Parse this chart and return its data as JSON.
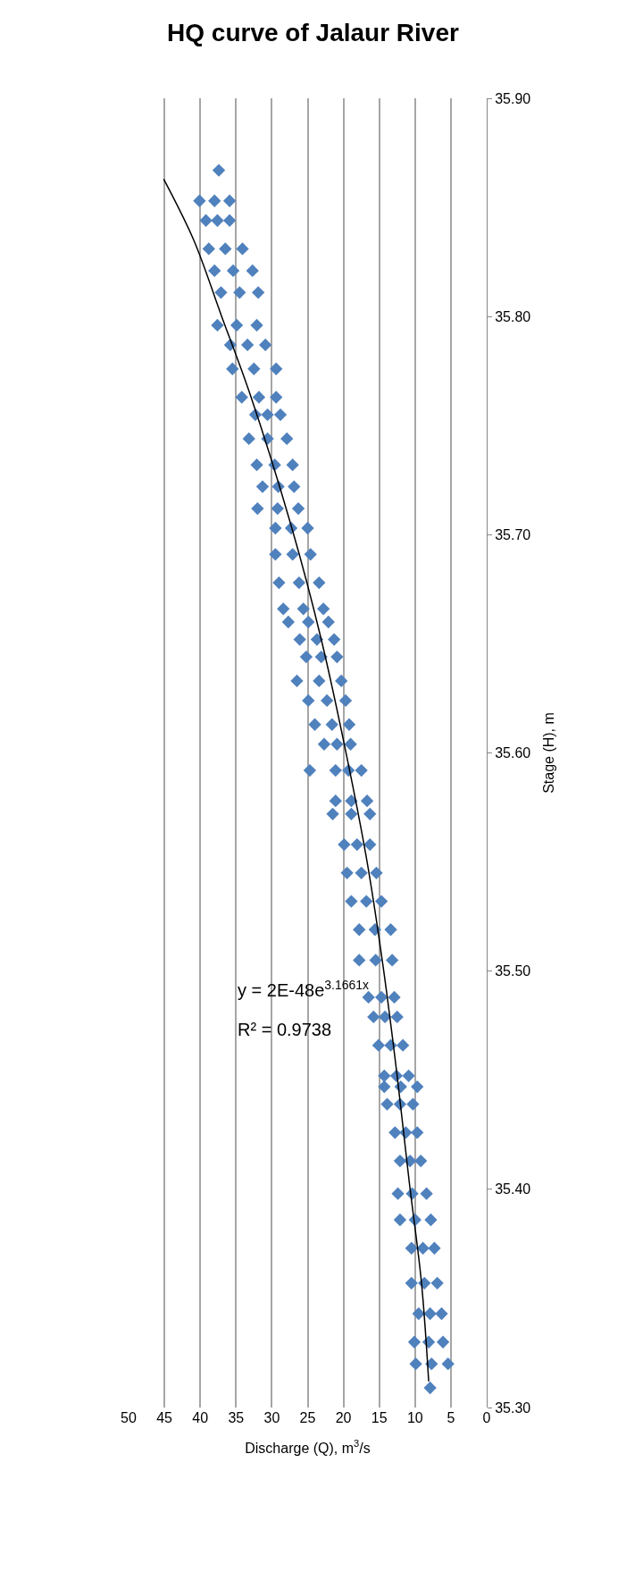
{
  "chart_data": {
    "type": "scatter",
    "title": "HQ curve of Jalaur River",
    "xlabel": "Discharge (Q), m$^{3}$/s",
    "ylabel": "Stage (H), m",
    "annotations": [
      "y = 2E-48e$^{3.1661x}$",
      "R² = 0.9738"
    ],
    "series": [
      {
        "color": "#4f81bd",
        "marker": "diamond",
        "values": [
          35.867,
          35.853,
          35.853,
          35.853,
          35.844,
          35.844,
          35.844,
          35.831,
          35.831,
          35.831,
          35.821,
          35.821,
          35.821,
          35.811,
          35.811,
          35.811,
          35.796,
          35.796,
          35.796,
          35.787,
          35.787,
          35.787,
          35.776,
          35.776,
          35.776,
          35.763,
          35.763,
          35.763,
          35.755,
          35.755,
          35.755,
          35.744,
          35.744,
          35.744,
          35.732,
          35.732,
          35.732,
          35.722,
          35.722,
          35.722,
          35.712,
          35.712,
          35.712,
          35.703,
          35.703,
          35.703,
          35.691,
          35.691,
          35.691,
          35.678,
          35.678,
          35.678,
          35.666,
          35.666,
          35.666,
          35.66,
          35.66,
          35.66,
          35.652,
          35.652,
          35.652,
          35.644,
          35.644,
          35.644,
          35.633,
          35.633,
          35.633,
          35.624,
          35.624,
          35.624,
          35.613,
          35.613,
          35.613,
          35.604,
          35.604,
          35.604,
          35.592,
          35.592,
          35.592,
          35.592,
          35.578,
          35.578,
          35.578,
          35.572,
          35.572,
          35.572,
          35.558,
          35.558,
          35.558,
          35.545,
          35.545,
          35.545,
          35.532,
          35.532,
          35.532,
          35.519,
          35.519,
          35.519,
          35.505,
          35.505,
          35.505,
          35.488,
          35.488,
          35.488,
          35.479,
          35.479,
          35.479,
          35.466,
          35.466,
          35.466,
          35.452,
          35.452,
          35.452,
          35.447,
          35.447,
          35.447,
          35.439,
          35.439,
          35.439,
          35.426,
          35.426,
          35.426,
          35.413,
          35.413,
          35.413,
          35.398,
          35.398,
          35.398,
          35.386,
          35.386,
          35.386,
          35.373,
          35.373,
          35.373,
          35.357,
          35.357,
          35.357,
          35.343,
          35.343,
          35.343,
          35.33,
          35.33,
          35.33,
          35.32,
          35.32,
          35.32,
          35.309
        ],
        "x": [
          37.4,
          40.1,
          38.0,
          35.9,
          39.2,
          37.6,
          35.9,
          38.8,
          36.5,
          34.1,
          38.0,
          35.4,
          32.7,
          37.1,
          34.5,
          31.9,
          37.6,
          34.9,
          32.1,
          35.8,
          33.4,
          30.9,
          35.5,
          32.5,
          29.4,
          34.2,
          31.8,
          29.4,
          32.3,
          30.6,
          28.8,
          33.2,
          30.6,
          27.9,
          32.1,
          29.6,
          27.1,
          31.3,
          29.1,
          26.9,
          32.0,
          29.2,
          26.3,
          29.5,
          27.3,
          25.0,
          29.5,
          27.1,
          24.6,
          29.0,
          26.2,
          23.4,
          28.4,
          25.6,
          22.8,
          27.7,
          24.9,
          22.1,
          26.1,
          23.7,
          21.3,
          25.2,
          23.1,
          20.9,
          26.5,
          23.4,
          20.3,
          24.9,
          22.3,
          19.7,
          24.0,
          21.6,
          19.2,
          22.7,
          20.9,
          19.0,
          24.7,
          21.1,
          19.3,
          17.5,
          21.1,
          18.9,
          16.7,
          21.5,
          18.9,
          16.3,
          19.9,
          18.1,
          16.3,
          19.5,
          17.5,
          15.4,
          18.9,
          16.8,
          14.7,
          17.8,
          15.6,
          13.4,
          17.8,
          15.5,
          13.2,
          16.5,
          14.7,
          12.9,
          15.8,
          14.2,
          12.5,
          15.1,
          13.4,
          11.7,
          14.3,
          12.6,
          10.9,
          14.3,
          12.0,
          9.7,
          13.9,
          12.1,
          10.3,
          12.8,
          11.3,
          9.7,
          12.1,
          10.7,
          9.2,
          12.4,
          10.4,
          8.4,
          12.1,
          10.0,
          7.8,
          10.5,
          8.9,
          7.3,
          10.5,
          8.7,
          6.9,
          9.5,
          7.9,
          6.3,
          10.1,
          8.1,
          6.1,
          9.9,
          7.7,
          5.4,
          7.9
        ]
      },
      {
        "type": "line",
        "color": "#000000",
        "marker": "none",
        "values": [
          35.312,
          35.357,
          35.403,
          35.452,
          35.503,
          35.552,
          35.601,
          35.652,
          35.703,
          35.764,
          35.8,
          35.835,
          35.863
        ],
        "x": [
          8.1,
          9.1,
          10.8,
          12.5,
          14.5,
          16.8,
          19.7,
          23.1,
          27.2,
          33.0,
          37.0,
          40.9,
          45.1
        ]
      }
    ],
    "xlim": [
      50,
      0
    ],
    "xticks": [
      0,
      5,
      10,
      15,
      20,
      25,
      30,
      35,
      40,
      45,
      50
    ],
    "ylim": [
      35.3,
      35.9
    ],
    "yticks": [
      {
        "value": 35.3,
        "label": "35.30"
      },
      {
        "value": 35.4,
        "label": "35.40"
      },
      {
        "value": 35.5,
        "label": "35.50"
      },
      {
        "value": 35.6,
        "label": "35.60"
      },
      {
        "value": 35.7,
        "label": "35.70"
      },
      {
        "value": 35.8,
        "label": "35.80"
      },
      {
        "value": 35.9,
        "label": "35.90"
      }
    ],
    "grid": "x"
  }
}
